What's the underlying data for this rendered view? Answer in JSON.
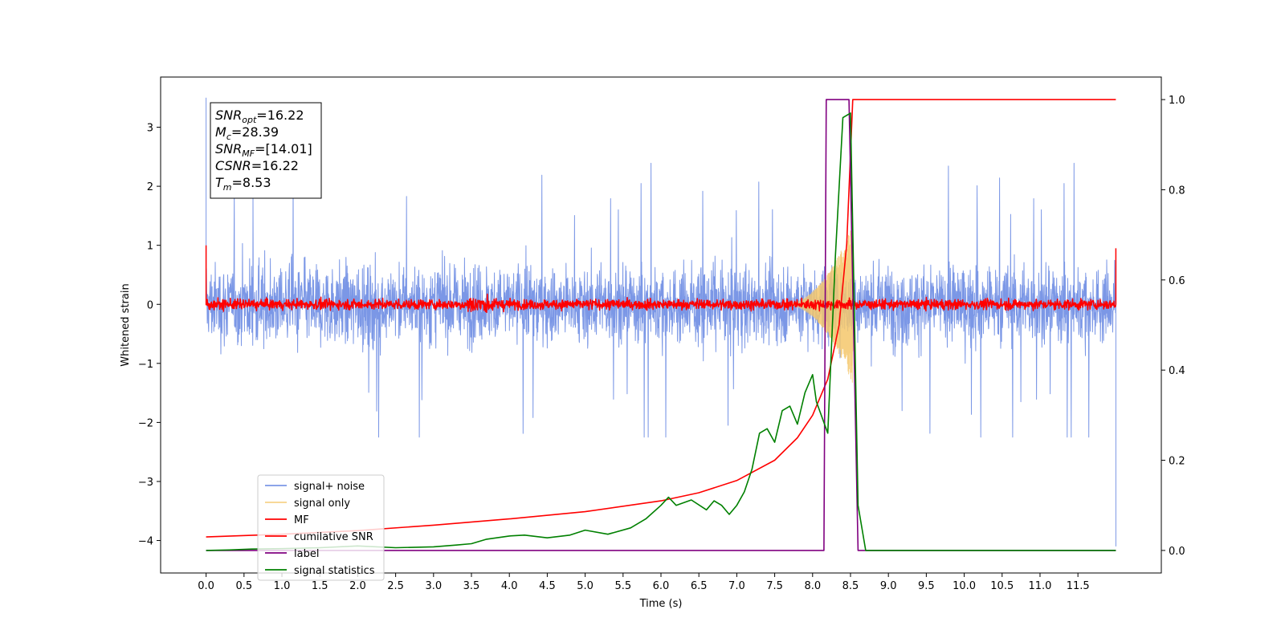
{
  "chart_data": {
    "type": "line",
    "title": "",
    "xlabel": "Time (s)",
    "ylabel": "Whitened strain",
    "y2label": "",
    "xlim": [
      -0.6,
      12.6
    ],
    "ylim": [
      -4.55,
      3.85
    ],
    "y2lim": [
      -0.05,
      1.05
    ],
    "x_ticks": [
      0.0,
      0.5,
      1.0,
      1.5,
      2.0,
      2.5,
      3.0,
      3.5,
      4.0,
      4.5,
      5.0,
      5.5,
      6.0,
      6.5,
      7.0,
      7.5,
      8.0,
      8.5,
      9.0,
      9.5,
      10.0,
      10.5,
      11.0,
      11.5
    ],
    "x_tick_labels": [
      "0.0",
      "0.5",
      "1.0",
      "1.5",
      "2.0",
      "2.5",
      "3.0",
      "3.5",
      "4.0",
      "4.5",
      "5.0",
      "5.5",
      "6.0",
      "6.5",
      "7.0",
      "7.5",
      "8.0",
      "8.5",
      "9.0",
      "9.5",
      "10.0",
      "10.5",
      "11.0",
      "11.5"
    ],
    "y_ticks": [
      -4,
      -3,
      -2,
      -1,
      0,
      1,
      2,
      3
    ],
    "y_tick_labels": [
      "−4",
      "−3",
      "−2",
      "−1",
      "0",
      "1",
      "2",
      "3"
    ],
    "y2_ticks": [
      0.0,
      0.2,
      0.4,
      0.6,
      0.8,
      1.0
    ],
    "y2_tick_labels": [
      "0.0",
      "0.2",
      "0.4",
      "0.6",
      "0.8",
      "1.0"
    ],
    "grid": false,
    "legend_placement": "lower-left",
    "annotation": [
      {
        "base": "SNR",
        "sub": "opt",
        "value": "=16.22"
      },
      {
        "base": "M",
        "sub": "c",
        "value": "=28.39"
      },
      {
        "base": "SNR",
        "sub": "MF",
        "value": "=[14.01]"
      },
      {
        "base": "CSNR",
        "sub": "",
        "value": "=16.22"
      },
      {
        "base": "T",
        "sub": "m",
        "value": "=8.53"
      }
    ],
    "series": [
      {
        "name": "signal+ noise",
        "color": "#7b97e6",
        "axis": "left",
        "style": "noise",
        "x_range": [
          0.0,
          12.0
        ],
        "amplitude": 0.85,
        "spike_max": 2.7,
        "spike_min": -2.25
      },
      {
        "name": "signal only",
        "color": "#f5c76b",
        "axis": "left",
        "style": "chirp",
        "x_range": [
          7.6,
          8.53
        ],
        "peak_amplitude": 1.35
      },
      {
        "name": "MF",
        "color": "#ff0000",
        "axis": "left",
        "style": "noise",
        "x_range": [
          0.0,
          12.0
        ],
        "amplitude": 0.06
      },
      {
        "name": "cumilative SNR",
        "color": "#ff0000",
        "axis": "right",
        "x": [
          0.0,
          1.0,
          2.0,
          3.0,
          4.0,
          5.0,
          6.0,
          6.5,
          7.0,
          7.5,
          7.8,
          8.0,
          8.2,
          8.35,
          8.45,
          8.5,
          8.53,
          8.55,
          9.0,
          10.0,
          11.0,
          12.0
        ],
        "y": [
          0.03,
          0.036,
          0.044,
          0.056,
          0.07,
          0.086,
          0.11,
          0.128,
          0.155,
          0.2,
          0.25,
          0.3,
          0.38,
          0.5,
          0.68,
          0.88,
          1.0,
          1.0,
          1.0,
          1.0,
          1.0,
          1.0
        ]
      },
      {
        "name": "label",
        "color": "#800080",
        "axis": "right",
        "x": [
          0.0,
          8.15,
          8.18,
          8.48,
          8.6,
          12.0
        ],
        "y": [
          0.0,
          0.0,
          1.0,
          1.0,
          0.0,
          0.0
        ]
      },
      {
        "name": "signal statistics",
        "color": "#008000",
        "axis": "right",
        "x": [
          0.0,
          0.3,
          0.6,
          1.0,
          1.5,
          2.0,
          2.5,
          3.0,
          3.3,
          3.5,
          3.7,
          4.0,
          4.2,
          4.5,
          4.8,
          5.0,
          5.3,
          5.6,
          5.8,
          6.0,
          6.1,
          6.2,
          6.4,
          6.6,
          6.7,
          6.8,
          6.9,
          7.0,
          7.1,
          7.2,
          7.3,
          7.4,
          7.5,
          7.6,
          7.7,
          7.8,
          7.9,
          8.0,
          8.05,
          8.2,
          8.3,
          8.4,
          8.5,
          8.6,
          8.7,
          12.0
        ],
        "y": [
          0.0,
          0.001,
          0.003,
          0.004,
          0.006,
          0.01,
          0.006,
          0.008,
          0.012,
          0.015,
          0.025,
          0.032,
          0.034,
          0.028,
          0.034,
          0.045,
          0.036,
          0.05,
          0.07,
          0.1,
          0.118,
          0.1,
          0.112,
          0.09,
          0.11,
          0.1,
          0.08,
          0.1,
          0.13,
          0.18,
          0.26,
          0.27,
          0.24,
          0.31,
          0.32,
          0.28,
          0.35,
          0.39,
          0.33,
          0.26,
          0.65,
          0.96,
          0.97,
          0.1,
          0.0,
          0.0
        ]
      }
    ]
  }
}
